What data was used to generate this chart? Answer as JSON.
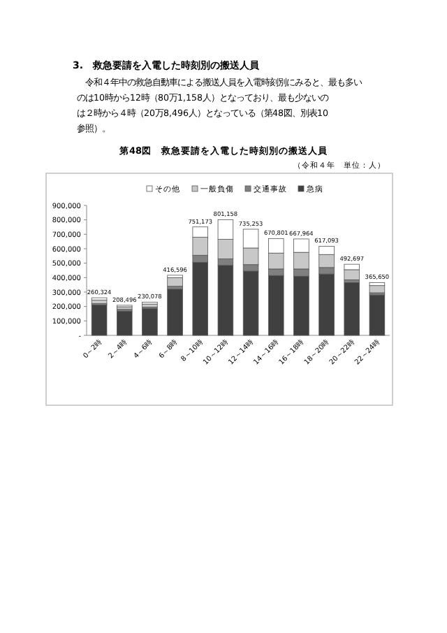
{
  "chart_data": {
    "type": "bar",
    "stacked": true,
    "title": "第48図　救急要請を入電した時刻別の搬送人員",
    "subtitle": "（令和４年　単位：人）",
    "annotations": [
      "3.　救急要請を入電した時刻別の搬送人員",
      "　令和４年中の救急自動車による搬送人員を入電時刻別にみると、最も多いのは10時から12時（80万1,158人）となっており、最も少ないのは２時から４時（20万8,496人）となっている（第48図、別表10参照）。"
    ],
    "categories": [
      "0～2時",
      "2～4時",
      "4～6時",
      "6～8時",
      "8～10時",
      "10～12時",
      "12～14時",
      "14～16時",
      "16～18時",
      "18～20時",
      "20～22時",
      "22～24時"
    ],
    "series": [
      {
        "name": "急病",
        "color": "#404040",
        "values": [
          210000,
          168000,
          185000,
          320000,
          505000,
          485000,
          445000,
          415000,
          410000,
          425000,
          365000,
          280000
        ]
      },
      {
        "name": "交通事故",
        "color": "#808080",
        "values": [
          10000,
          12000,
          10000,
          20000,
          50000,
          45000,
          45000,
          45000,
          50000,
          45000,
          20000,
          15000
        ]
      },
      {
        "name": "一般負傷",
        "color": "#c8c8c8",
        "values": [
          25000,
          18000,
          22000,
          60000,
          125000,
          135000,
          115000,
          110000,
          115000,
          90000,
          70000,
          50000
        ]
      },
      {
        "name": "その他",
        "color": "#ffffff",
        "values": [
          15324,
          10496,
          13078,
          16596,
          71173,
          136158,
          130253,
          100801,
          92964,
          57093,
          37697,
          20650
        ]
      }
    ],
    "totals": [
      "260,324",
      "208,496",
      "230,078",
      "416,596",
      "751,173",
      "801,158",
      "735,253",
      "670,801",
      "667,964",
      "617,093",
      "492,697",
      "365,650"
    ],
    "ylim": [
      0,
      900000
    ],
    "yticks": [
      {
        "value": 0,
        "label": "-"
      },
      {
        "value": 100000,
        "label": "100,000"
      },
      {
        "value": 200000,
        "label": "200,000"
      },
      {
        "value": 300000,
        "label": "300,000"
      },
      {
        "value": 400000,
        "label": "400,000"
      },
      {
        "value": 500000,
        "label": "500,000"
      },
      {
        "value": 600000,
        "label": "600,000"
      },
      {
        "value": 700000,
        "label": "700,000"
      },
      {
        "value": 800000,
        "label": "800,000"
      },
      {
        "value": 900000,
        "label": "900,000"
      }
    ],
    "legend": "top"
  }
}
